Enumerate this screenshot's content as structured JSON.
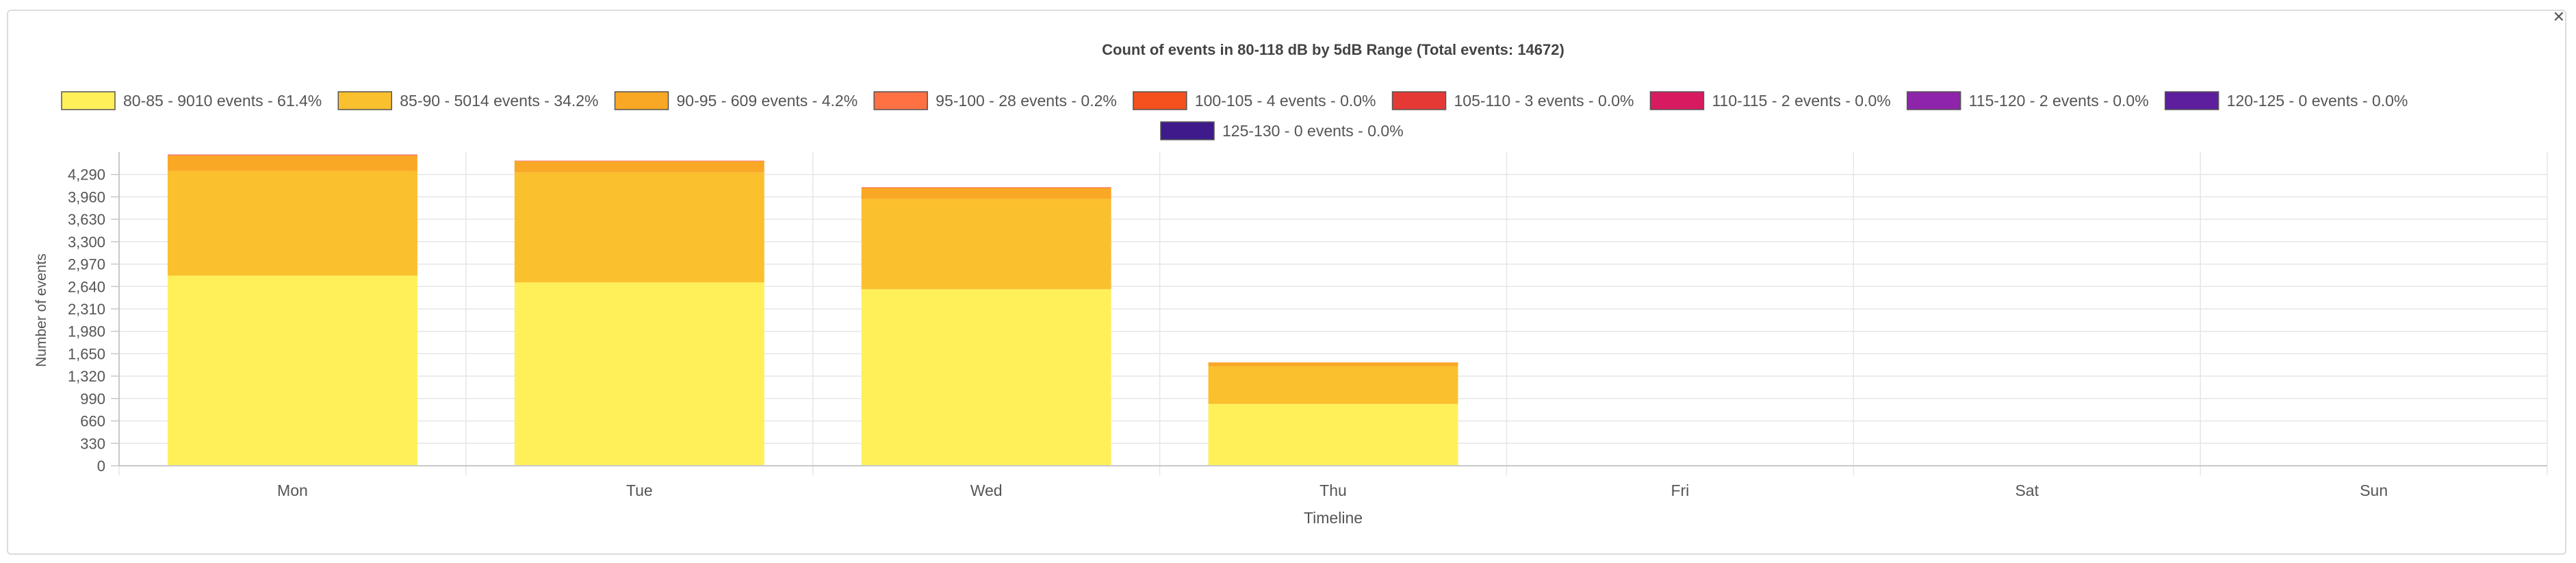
{
  "chart_data": {
    "type": "bar",
    "stacked": true,
    "title": "Count of events in 80-118 dB by 5dB Range (Total events: 14672)",
    "xlabel": "Timeline",
    "ylabel": "Number of events",
    "categories": [
      "Mon",
      "Tue",
      "Wed",
      "Thu",
      "Fri",
      "Sat",
      "Sun"
    ],
    "ylim": [
      0,
      4620
    ],
    "yticks": [
      0,
      330,
      660,
      990,
      1320,
      1650,
      1980,
      2310,
      2640,
      2970,
      3300,
      3630,
      3960,
      4290
    ],
    "ytick_labels": [
      "0",
      "330",
      "660",
      "990",
      "1,320",
      "1,650",
      "1,980",
      "2,310",
      "2,640",
      "2,970",
      "3,300",
      "3,630",
      "3,960",
      "4,290"
    ],
    "grid": true,
    "legend_position": "top",
    "series": [
      {
        "name": "80-85 - 9010 events - 61.4%",
        "color": "#fff05a",
        "values": [
          2800,
          2700,
          2600,
          910,
          0,
          0,
          0
        ]
      },
      {
        "name": "85-90 - 5014 events - 34.2%",
        "color": "#fbc02d",
        "values": [
          1540,
          1620,
          1330,
          554,
          0,
          0,
          0
        ]
      },
      {
        "name": "90-95 - 609 events - 4.2%",
        "color": "#f9a825",
        "values": [
          228,
          165,
          160,
          56,
          0,
          0,
          0
        ]
      },
      {
        "name": "95-100 - 28 events - 0.2%",
        "color": "#ff7043",
        "values": [
          11,
          6,
          9,
          2,
          0,
          0,
          0
        ]
      },
      {
        "name": "100-105 - 4 events - 0.0%",
        "color": "#f4511e",
        "values": [
          2,
          1,
          1,
          0,
          0,
          0,
          0
        ]
      },
      {
        "name": "105-110 - 3 events - 0.0%",
        "color": "#e53935",
        "values": [
          1,
          1,
          1,
          0,
          0,
          0,
          0
        ]
      },
      {
        "name": "110-115 - 2 events - 0.0%",
        "color": "#d81b60",
        "values": [
          1,
          0,
          1,
          0,
          0,
          0,
          0
        ]
      },
      {
        "name": "115-120 - 2 events - 0.0%",
        "color": "#8e24aa",
        "values": [
          1,
          1,
          0,
          0,
          0,
          0,
          0
        ]
      },
      {
        "name": "120-125 - 0 events - 0.0%",
        "color": "#5e1f9e",
        "values": [
          0,
          0,
          0,
          0,
          0,
          0,
          0
        ]
      },
      {
        "name": "125-130 - 0 events - 0.0%",
        "color": "#3f1a8a",
        "values": [
          0,
          0,
          0,
          0,
          0,
          0,
          0
        ]
      }
    ]
  },
  "window": {
    "close_glyph": "✕"
  }
}
